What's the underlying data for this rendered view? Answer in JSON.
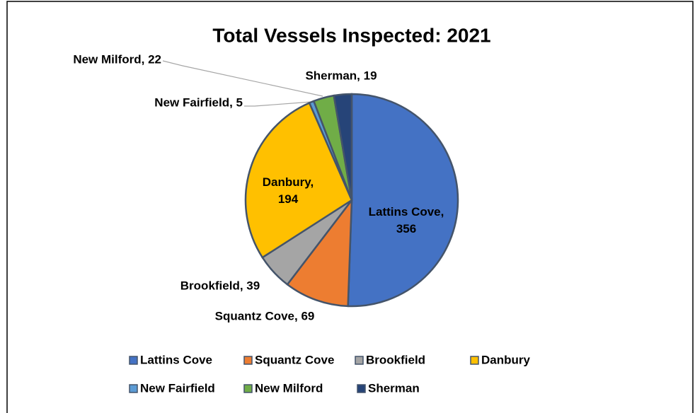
{
  "chart_data": {
    "type": "pie",
    "title": "Total Vessels Inspected: 2021",
    "categories": [
      "Lattins Cove",
      "Squantz Cove",
      "Brookfield",
      "Danbury",
      "New Fairfield",
      "New Milford",
      "Sherman"
    ],
    "values": [
      356,
      69,
      39,
      194,
      5,
      22,
      19
    ],
    "value_labels": [
      "Lattins Cove, 356",
      "Squantz Cove, 69",
      "Brookfield, 39",
      "Danbury, 194",
      "New Fairfield, 5",
      "New Milford, 22",
      "Sherman, 19"
    ],
    "colors": [
      "#4472c4",
      "#ed7d31",
      "#a5a5a5",
      "#ffc000",
      "#5b9bd5",
      "#70ad47",
      "#264478"
    ],
    "legend": "bottom"
  }
}
